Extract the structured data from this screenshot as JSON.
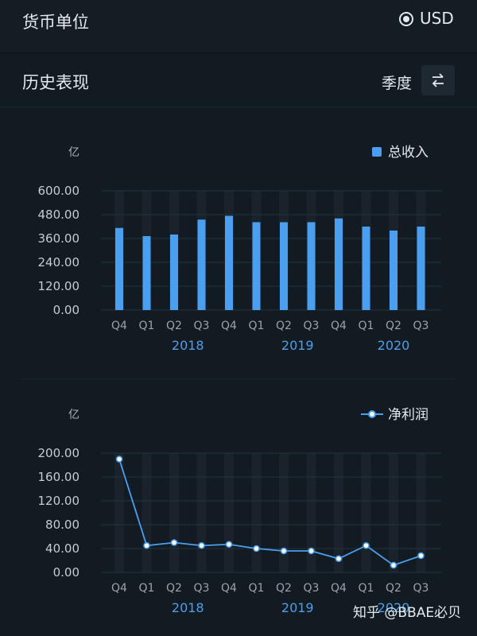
{
  "header": {
    "title": "货币单位",
    "currency": "USD"
  },
  "section": {
    "title": "历史表现",
    "period": "季度"
  },
  "watermark": "知乎 @BBAE必贝",
  "colors": {
    "accent": "#4a9ff0",
    "background": "#121a22"
  },
  "icons": {
    "switch": "swap-arrows-icon"
  },
  "chart_data": [
    {
      "type": "bar",
      "unit": "亿",
      "categories": [
        "Q4",
        "Q1",
        "Q2",
        "Q3",
        "Q4",
        "Q1",
        "Q2",
        "Q3",
        "Q4",
        "Q1",
        "Q2",
        "Q3"
      ],
      "years": [
        {
          "label": "2018",
          "start": 1,
          "end": 4
        },
        {
          "label": "2019",
          "start": 5,
          "end": 8
        },
        {
          "label": "2020",
          "start": 9,
          "end": 11
        }
      ],
      "series": [
        {
          "name": "总收入",
          "values": [
            413,
            372,
            380,
            455,
            474,
            442,
            442,
            442,
            461,
            420,
            400,
            420
          ]
        }
      ],
      "yticks": [
        "600.00",
        "480.00",
        "360.00",
        "240.00",
        "120.00",
        "0.00"
      ],
      "ylim": [
        0,
        600
      ],
      "legend_position": "top-right"
    },
    {
      "type": "line",
      "unit": "亿",
      "categories": [
        "Q4",
        "Q1",
        "Q2",
        "Q3",
        "Q4",
        "Q1",
        "Q2",
        "Q3",
        "Q4",
        "Q1",
        "Q2",
        "Q3"
      ],
      "years": [
        {
          "label": "2018",
          "start": 1,
          "end": 4
        },
        {
          "label": "2019",
          "start": 5,
          "end": 8
        },
        {
          "label": "2020",
          "start": 9,
          "end": 11
        }
      ],
      "series": [
        {
          "name": "净利润",
          "values": [
            190,
            45,
            50,
            45,
            47,
            40,
            36,
            36,
            23,
            45,
            12,
            28
          ]
        }
      ],
      "yticks": [
        "200.00",
        "160.00",
        "120.00",
        "80.00",
        "40.00",
        "0.00"
      ],
      "ylim": [
        0,
        200
      ],
      "legend_position": "top-right"
    }
  ]
}
